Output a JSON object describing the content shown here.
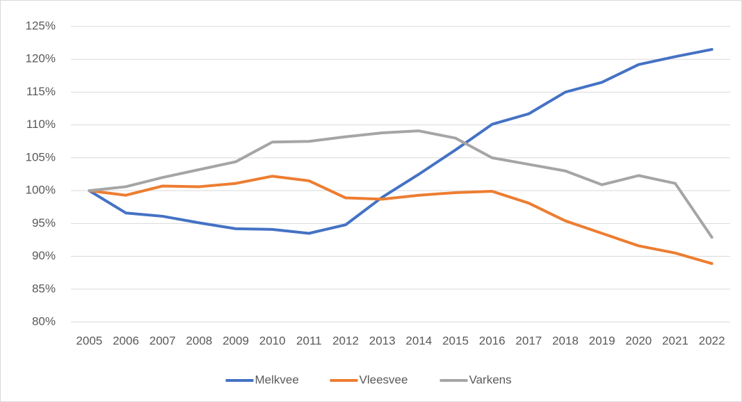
{
  "chart_data": {
    "type": "line",
    "categories": [
      "2005",
      "2006",
      "2007",
      "2008",
      "2009",
      "2010",
      "2011",
      "2012",
      "2013",
      "2014",
      "2015",
      "2016",
      "2017",
      "2018",
      "2019",
      "2020",
      "2021",
      "2022"
    ],
    "series": [
      {
        "name": "Melkvee",
        "color": "#4472c4",
        "values": [
          100,
          96.6,
          96.1,
          95.1,
          94.2,
          94.1,
          93.5,
          94.8,
          99,
          102.5,
          106.2,
          110.1,
          111.7,
          115,
          116.5,
          119.2,
          120.4,
          121.5
        ]
      },
      {
        "name": "Vleesvee",
        "color": "#ed7d31",
        "values": [
          100,
          99.3,
          100.7,
          100.6,
          101.1,
          102.2,
          101.5,
          98.9,
          98.7,
          99.3,
          99.7,
          99.9,
          98.1,
          95.4,
          93.5,
          91.6,
          90.5,
          88.9
        ]
      },
      {
        "name": "Varkens",
        "color": "#a5a5a5",
        "values": [
          100,
          100.6,
          102,
          103.2,
          104.4,
          107.4,
          107.5,
          108.2,
          108.8,
          109.1,
          108,
          105,
          104,
          103,
          100.9,
          102.3,
          101.1,
          92.9
        ]
      }
    ],
    "ylim": [
      80,
      125
    ],
    "yticks": [
      {
        "value": 80,
        "label": "80%"
      },
      {
        "value": 85,
        "label": "85%"
      },
      {
        "value": 90,
        "label": "90%"
      },
      {
        "value": 95,
        "label": "95%"
      },
      {
        "value": 100,
        "label": "100%"
      },
      {
        "value": 105,
        "label": "105%"
      },
      {
        "value": 110,
        "label": "110%"
      },
      {
        "value": 115,
        "label": "115%"
      },
      {
        "value": 120,
        "label": "120%"
      },
      {
        "value": 125,
        "label": "125%"
      }
    ],
    "grid": true,
    "legend": "bottom"
  }
}
